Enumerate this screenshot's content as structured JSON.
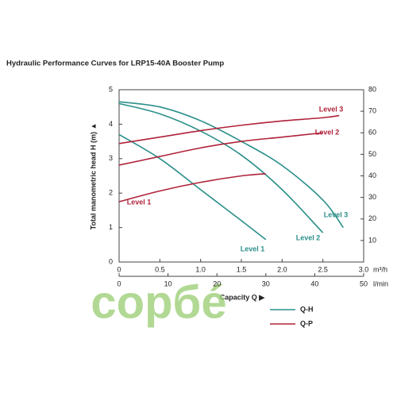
{
  "chart_data": {
    "type": "line",
    "title": "Hydraulic Performance Curves for LRP15-40A Booster Pump",
    "y_label": "Total manometric head H  (m) ▲",
    "x_label": "Capacity Q ▶",
    "x_unit": "m³/h",
    "x2_unit": "l/min",
    "xlim": [
      0,
      3
    ],
    "xticks": [
      0,
      0.5,
      {
        "value": 1,
        "label": "1.0"
      },
      1.5,
      {
        "value": 2,
        "label": "2.0"
      },
      2.5,
      {
        "value": 3,
        "label": "3.0"
      }
    ],
    "x2lim": [
      0,
      50
    ],
    "x2ticks": [
      0,
      10,
      20,
      30,
      40,
      50
    ],
    "ylim": [
      0,
      5
    ],
    "yticks": [
      0,
      1,
      2,
      3,
      4,
      5
    ],
    "y2lim": [
      0,
      80
    ],
    "y2ticks": [
      10,
      20,
      30,
      40,
      50,
      60,
      70,
      80
    ],
    "grid": false,
    "watermark": "сорбé",
    "legend": [
      {
        "name": "Q-H",
        "color": "#2a8f8a"
      },
      {
        "name": "Q-P",
        "color": "#b0223a"
      }
    ],
    "series": [
      {
        "name": "Level 1",
        "color": "#2a8f8a",
        "axis": "y",
        "x": [
          0,
          0.5,
          1.0,
          1.5,
          1.8
        ],
        "values": [
          3.7,
          3.0,
          2.1,
          1.2,
          0.65
        ]
      },
      {
        "name": "Level 2",
        "color": "#2a8f8a",
        "axis": "y",
        "x": [
          0,
          0.5,
          1.0,
          1.5,
          2.0,
          2.5
        ],
        "values": [
          4.6,
          4.3,
          3.8,
          3.1,
          2.1,
          0.85
        ]
      },
      {
        "name": "Level 3",
        "color": "#2a8f8a",
        "axis": "y",
        "x": [
          0,
          0.5,
          1.0,
          1.5,
          2.0,
          2.5,
          2.75
        ],
        "values": [
          4.65,
          4.5,
          4.1,
          3.5,
          2.8,
          1.8,
          1.0
        ]
      },
      {
        "name": "Level 1",
        "color": "#b0223a",
        "axis": "y2",
        "x": [
          0,
          0.5,
          1.0,
          1.5,
          1.8
        ],
        "values": [
          28,
          33,
          37,
          40,
          41
        ]
      },
      {
        "name": "Level 2",
        "color": "#b0223a",
        "axis": "y2",
        "x": [
          0,
          0.5,
          1.0,
          1.5,
          2.0,
          2.5
        ],
        "values": [
          45,
          49,
          53,
          56,
          58,
          60
        ]
      },
      {
        "name": "Level 3",
        "color": "#b0223a",
        "axis": "y2",
        "x": [
          0,
          0.5,
          1.0,
          1.5,
          2.0,
          2.5,
          2.7
        ],
        "values": [
          55,
          58,
          61,
          63.5,
          65.5,
          67,
          68
        ]
      }
    ]
  }
}
